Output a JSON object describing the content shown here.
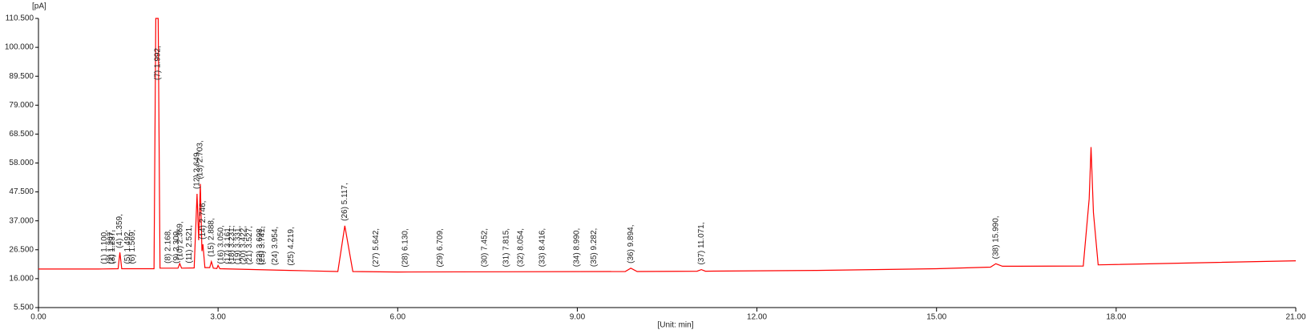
{
  "chart_data": {
    "type": "line",
    "ylabel": "[pA]",
    "xlabel": "[Unit: min]",
    "xlim": [
      0,
      21
    ],
    "xticks": [
      {
        "value": 0,
        "label": "0.00"
      },
      {
        "value": 3,
        "label": "3.00"
      },
      {
        "value": 6,
        "label": "6.00"
      },
      {
        "value": 9,
        "label": "9.00"
      },
      {
        "value": 12,
        "label": "12.00"
      },
      {
        "value": 15,
        "label": "15.00"
      },
      {
        "value": 18,
        "label": "18.00"
      },
      {
        "value": 21,
        "label": "21.00"
      }
    ],
    "ylim": [
      5.5,
      110.5
    ],
    "yticks": [
      {
        "value": 5.5,
        "label": "5.500"
      },
      {
        "value": 16,
        "label": "16.000"
      },
      {
        "value": 26.5,
        "label": "26.500"
      },
      {
        "value": 37,
        "label": "37.000"
      },
      {
        "value": 47.5,
        "label": "47.500"
      },
      {
        "value": 58,
        "label": "58.000"
      },
      {
        "value": 68.5,
        "label": "68.500"
      },
      {
        "value": 79,
        "label": "79.000"
      },
      {
        "value": 89.5,
        "label": "89.500"
      },
      {
        "value": 100,
        "label": "100.000"
      },
      {
        "value": 110.5,
        "label": "110.500"
      }
    ],
    "series": [
      {
        "color": "#ff0000",
        "x": [
          0,
          1.0,
          1.33,
          1.36,
          1.39,
          1.93,
          1.96,
          2.0,
          2.03,
          2.33,
          2.36,
          2.39,
          2.6,
          2.649,
          2.675,
          2.703,
          2.73,
          2.746,
          2.78,
          2.86,
          2.888,
          2.92,
          2.98,
          3.0,
          3.03,
          4.2,
          5.0,
          5.117,
          5.25,
          6.0,
          9.8,
          9.894,
          10.0,
          11.0,
          11.071,
          11.14,
          13.0,
          15.0,
          15.9,
          15.99,
          16.1,
          17.45,
          17.55,
          17.58,
          17.62,
          17.7,
          21.0
        ],
        "y": [
          19.5,
          19.5,
          19.6,
          25.5,
          19.6,
          19.6,
          110.5,
          110.5,
          19.8,
          19.8,
          21.5,
          19.8,
          19.9,
          46.8,
          30,
          50.4,
          26,
          28.5,
          20,
          20,
          22.2,
          19.8,
          19.7,
          20.8,
          19.6,
          19.0,
          18.6,
          35.2,
          18.6,
          18.4,
          18.6,
          19.8,
          18.6,
          18.7,
          19.3,
          18.7,
          19.0,
          19.6,
          20.2,
          21.4,
          20.5,
          20.6,
          45,
          63.8,
          40,
          21,
          22.5
        ]
      }
    ],
    "peaks": [
      {
        "label": "(1) 1.100,",
        "x": 1.1
      },
      {
        "label": "(2) 1.207,",
        "x": 1.207
      },
      {
        "label": "(3) 1.237,",
        "x": 1.237
      },
      {
        "label": "(4) 1.359,",
        "x": 1.359
      },
      {
        "label": "(5) 1.492,",
        "x": 1.492
      },
      {
        "label": "(6) 1.569,",
        "x": 1.569
      },
      {
        "label": "(7) 1.992,",
        "x": 1.992
      },
      {
        "label": "(8) 2.168,",
        "x": 2.168
      },
      {
        "label": "(9) 2.309,",
        "x": 2.309
      },
      {
        "label": "(10) 2.369,",
        "x": 2.369
      },
      {
        "label": "(11) 2.521,",
        "x": 2.521
      },
      {
        "label": "(12) 2.649,",
        "x": 2.649
      },
      {
        "label": "(13) 2.703,",
        "x": 2.703
      },
      {
        "label": "(14) 2.746,",
        "x": 2.746
      },
      {
        "label": "(15) 2.888,",
        "x": 2.888
      },
      {
        "label": "(16) 3.050,",
        "x": 3.05
      },
      {
        "label": "(17) 3.161,",
        "x": 3.161
      },
      {
        "label": "(18) 3.231,",
        "x": 3.231
      },
      {
        "label": "(19) 3.331,",
        "x": 3.331
      },
      {
        "label": "(20) 3.422,",
        "x": 3.422
      },
      {
        "label": "(21) 3.527,",
        "x": 3.527
      },
      {
        "label": "(22) 3.698,",
        "x": 3.698
      },
      {
        "label": "(23) 3.741,",
        "x": 3.741
      },
      {
        "label": "(24) 3.954,",
        "x": 3.954
      },
      {
        "label": "(25) 4.219,",
        "x": 4.219
      },
      {
        "label": "(26) 5.117,",
        "x": 5.117
      },
      {
        "label": "(27) 5.642,",
        "x": 5.642
      },
      {
        "label": "(28) 6.130,",
        "x": 6.13
      },
      {
        "label": "(29) 6.709,",
        "x": 6.709
      },
      {
        "label": "(30) 7.452,",
        "x": 7.452
      },
      {
        "label": "(31) 7.815,",
        "x": 7.815
      },
      {
        "label": "(32) 8.054,",
        "x": 8.054
      },
      {
        "label": "(33) 8.416,",
        "x": 8.416
      },
      {
        "label": "(34) 8.990,",
        "x": 8.99
      },
      {
        "label": "(35) 9.282,",
        "x": 9.282
      },
      {
        "label": "(36) 9.894,",
        "x": 9.894
      },
      {
        "label": "(37) 11.071,",
        "x": 11.071
      },
      {
        "label": "(38) 15.990,",
        "x": 15.99
      }
    ]
  }
}
